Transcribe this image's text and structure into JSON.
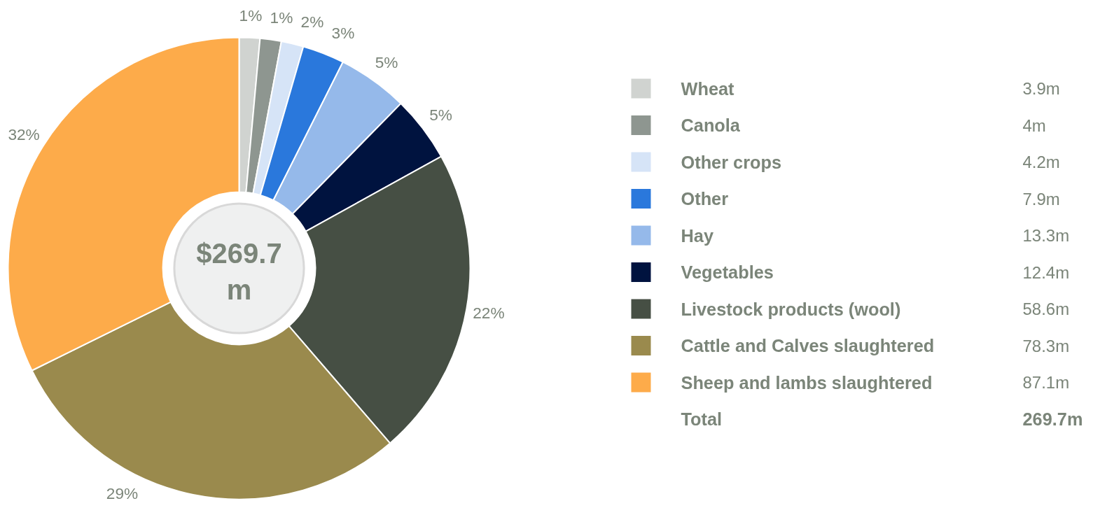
{
  "chart_data": {
    "type": "donut",
    "categories": [
      "Wheat",
      "Canola",
      "Other crops",
      "Other",
      "Hay",
      "Vegetables",
      "Livestock products (wool)",
      "Cattle and Calves slaughtered",
      "Sheep and lambs slaughtered"
    ],
    "values": [
      3.9,
      4,
      4.2,
      7.9,
      13.3,
      12.4,
      58.6,
      78.3,
      87.1
    ],
    "colors": [
      "#d0d3d0",
      "#8e9690",
      "#d6e4f7",
      "#2a78dc",
      "#95b9ea",
      "#00133f",
      "#464f44",
      "#9a8a4d",
      "#fdab4a"
    ],
    "value_labels": [
      "3.9m",
      "4m",
      "4.2m",
      "7.9m",
      "13.3m",
      "12.4m",
      "58.6m",
      "78.3m",
      "87.1m"
    ],
    "legend": "right",
    "annotations": [
      {
        "text": "1%",
        "x": "Wheat"
      },
      {
        "text": "1%",
        "x": "Canola"
      },
      {
        "text": "2%",
        "x": "Other crops"
      },
      {
        "text": "3%",
        "x": "Other"
      },
      {
        "text": "5%",
        "x": "Hay"
      },
      {
        "text": "5%",
        "x": "Vegetables"
      },
      {
        "text": "22%",
        "x": "Livestock products (wool)"
      },
      {
        "text": "29%",
        "x": "Cattle and Calves slaughtered"
      },
      {
        "text": "32%",
        "x": "Sheep and lambs slaughtered"
      },
      "Total",
      "269.7m",
      "$269.7 m"
    ]
  }
}
